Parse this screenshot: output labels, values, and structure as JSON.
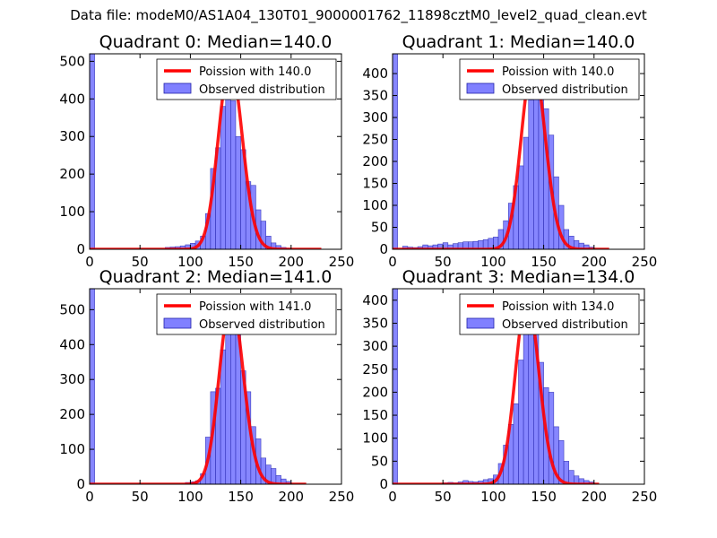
{
  "figure": {
    "suptitle": "Data file: modeM0/AS1A04_130T01_9000001762_11898cztM0_level2_quad_clean.evt"
  },
  "chart_data": [
    {
      "type": "bar",
      "title": "Quadrant 0: Median=140.0",
      "xlim": [
        0,
        250
      ],
      "ylim": [
        0,
        520
      ],
      "xticks": [
        0,
        50,
        100,
        150,
        200,
        250
      ],
      "yticks": [
        0,
        100,
        200,
        300,
        400,
        500
      ],
      "bin_width": 5,
      "bins": [
        [
          0,
          520
        ],
        [
          75,
          5
        ],
        [
          80,
          6
        ],
        [
          85,
          7
        ],
        [
          90,
          9
        ],
        [
          95,
          12
        ],
        [
          100,
          16
        ],
        [
          105,
          22
        ],
        [
          110,
          35
        ],
        [
          115,
          95
        ],
        [
          120,
          215
        ],
        [
          125,
          270
        ],
        [
          130,
          380
        ],
        [
          135,
          400
        ],
        [
          140,
          395
        ],
        [
          145,
          300
        ],
        [
          150,
          265
        ],
        [
          155,
          180
        ],
        [
          160,
          170
        ],
        [
          165,
          105
        ],
        [
          170,
          75
        ],
        [
          175,
          35
        ],
        [
          180,
          17
        ],
        [
          185,
          10
        ],
        [
          190,
          5
        ],
        [
          195,
          3
        ]
      ],
      "poisson_mean": 140.0,
      "poisson_peak": 495,
      "poisson_xrange": [
        0,
        230
      ],
      "legend": {
        "position": "top-right",
        "line_label": "Poission with 140.0",
        "bar_label": "Observed distribution"
      },
      "colors": {
        "bars": "#8080ff",
        "bar_edge": "#2020aa",
        "line": "#ff0000"
      }
    },
    {
      "type": "bar",
      "title": "Quadrant 1: Median=140.0",
      "xlim": [
        0,
        250
      ],
      "ylim": [
        0,
        445
      ],
      "xticks": [
        0,
        50,
        100,
        150,
        200,
        250
      ],
      "yticks": [
        0,
        50,
        100,
        150,
        200,
        250,
        300,
        350,
        400
      ],
      "bin_width": 5,
      "bins": [
        [
          0,
          445
        ],
        [
          10,
          7
        ],
        [
          15,
          5
        ],
        [
          20,
          4
        ],
        [
          25,
          6
        ],
        [
          30,
          10
        ],
        [
          35,
          8
        ],
        [
          40,
          10
        ],
        [
          45,
          12
        ],
        [
          50,
          15
        ],
        [
          55,
          10
        ],
        [
          60,
          13
        ],
        [
          65,
          15
        ],
        [
          70,
          17
        ],
        [
          75,
          17
        ],
        [
          80,
          18
        ],
        [
          85,
          20
        ],
        [
          90,
          22
        ],
        [
          95,
          25
        ],
        [
          100,
          28
        ],
        [
          105,
          45
        ],
        [
          110,
          65
        ],
        [
          115,
          105
        ],
        [
          120,
          145
        ],
        [
          125,
          190
        ],
        [
          130,
          255
        ],
        [
          135,
          340
        ],
        [
          140,
          400
        ],
        [
          145,
          375
        ],
        [
          150,
          320
        ],
        [
          155,
          260
        ],
        [
          160,
          165
        ],
        [
          165,
          100
        ],
        [
          170,
          45
        ],
        [
          175,
          30
        ],
        [
          180,
          20
        ],
        [
          185,
          14
        ],
        [
          190,
          10
        ],
        [
          195,
          5
        ]
      ],
      "poisson_mean": 140.0,
      "poisson_peak": 425,
      "poisson_xrange": [
        0,
        215
      ],
      "legend": {
        "position": "top-right",
        "line_label": "Poission with 140.0",
        "bar_label": "Observed distribution"
      },
      "colors": {
        "bars": "#8080ff",
        "bar_edge": "#2020aa",
        "line": "#ff0000"
      }
    },
    {
      "type": "bar",
      "title": "Quadrant 2: Median=141.0",
      "xlim": [
        0,
        250
      ],
      "ylim": [
        0,
        560
      ],
      "xticks": [
        0,
        50,
        100,
        150,
        200,
        250
      ],
      "yticks": [
        0,
        100,
        200,
        300,
        400,
        500
      ],
      "bin_width": 5,
      "bins": [
        [
          0,
          560
        ],
        [
          95,
          5
        ],
        [
          100,
          7
        ],
        [
          105,
          10
        ],
        [
          110,
          30
        ],
        [
          115,
          135
        ],
        [
          120,
          265
        ],
        [
          125,
          275
        ],
        [
          130,
          385
        ],
        [
          135,
          500
        ],
        [
          140,
          505
        ],
        [
          145,
          450
        ],
        [
          150,
          325
        ],
        [
          155,
          265
        ],
        [
          160,
          165
        ],
        [
          165,
          130
        ],
        [
          170,
          75
        ],
        [
          175,
          55
        ],
        [
          180,
          45
        ],
        [
          185,
          25
        ],
        [
          190,
          15
        ],
        [
          195,
          8
        ]
      ],
      "poisson_mean": 141.0,
      "poisson_peak": 525,
      "poisson_xrange": [
        0,
        215
      ],
      "legend": {
        "position": "top-right",
        "line_label": "Poission with 141.0",
        "bar_label": "Observed distribution"
      },
      "colors": {
        "bars": "#8080ff",
        "bar_edge": "#2020aa",
        "line": "#ff0000"
      }
    },
    {
      "type": "bar",
      "title": "Quadrant 3: Median=134.0",
      "xlim": [
        0,
        250
      ],
      "ylim": [
        0,
        425
      ],
      "xticks": [
        0,
        50,
        100,
        150,
        200,
        250
      ],
      "yticks": [
        0,
        50,
        100,
        150,
        200,
        250,
        300,
        350,
        400
      ],
      "bin_width": 5,
      "bins": [
        [
          0,
          425
        ],
        [
          50,
          3
        ],
        [
          55,
          4
        ],
        [
          60,
          3
        ],
        [
          65,
          5
        ],
        [
          70,
          8
        ],
        [
          75,
          6
        ],
        [
          80,
          5
        ],
        [
          85,
          7
        ],
        [
          90,
          10
        ],
        [
          95,
          12
        ],
        [
          100,
          20
        ],
        [
          105,
          45
        ],
        [
          110,
          85
        ],
        [
          115,
          130
        ],
        [
          120,
          175
        ],
        [
          125,
          270
        ],
        [
          130,
          340
        ],
        [
          135,
          355
        ],
        [
          140,
          345
        ],
        [
          145,
          265
        ],
        [
          150,
          210
        ],
        [
          155,
          200
        ],
        [
          160,
          125
        ],
        [
          165,
          95
        ],
        [
          170,
          50
        ],
        [
          175,
          30
        ],
        [
          180,
          18
        ],
        [
          185,
          12
        ],
        [
          190,
          8
        ],
        [
          195,
          5
        ]
      ],
      "poisson_mean": 134.0,
      "poisson_peak": 405,
      "poisson_xrange": [
        0,
        205
      ],
      "legend": {
        "position": "top-right",
        "line_label": "Poission with 134.0",
        "bar_label": "Observed distribution"
      },
      "colors": {
        "bars": "#8080ff",
        "bar_edge": "#2020aa",
        "line": "#ff0000"
      }
    }
  ]
}
